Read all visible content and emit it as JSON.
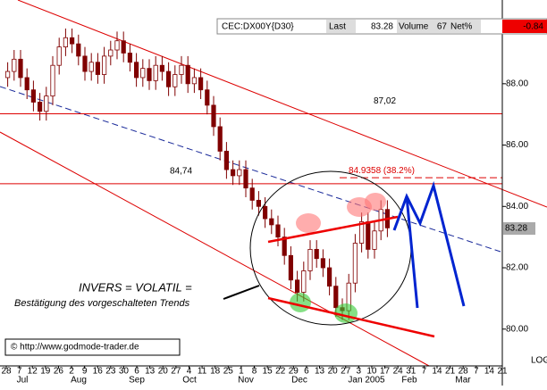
{
  "chart_data": {
    "type": "candlestick",
    "header": {
      "symbol": "CEC:DX00Y{D30}",
      "last_label": "Last",
      "last": "83.28",
      "volume_label": "Volume",
      "volume": "67",
      "net_label": "Net%",
      "net": "-0.84"
    },
    "open": [
      88.2,
      88.4,
      88.8,
      88.2,
      87.8,
      87.4,
      87.1,
      87.6,
      88.6,
      89.2,
      89.5,
      89.3,
      88.9,
      88.4,
      88.7,
      88.3,
      88.9,
      89.1,
      89.4,
      89.0,
      88.7,
      88.2,
      88.5,
      88.1,
      88.6,
      88.4,
      87.9,
      88.3,
      88.6,
      88.0,
      88.2,
      87.8,
      87.3,
      86.6,
      85.8,
      85.2,
      85.0,
      85.2,
      84.6,
      84.2,
      84.0,
      83.6,
      83.4,
      83.0,
      82.4,
      81.6,
      81.2,
      81.9,
      82.6,
      82.3,
      82.0,
      81.4,
      80.7,
      80.6,
      81.5,
      82.8,
      83.5,
      82.6,
      83.2,
      83.9
    ],
    "high": [
      88.7,
      89.1,
      89.1,
      88.5,
      88.1,
      87.7,
      87.9,
      88.9,
      89.5,
      89.8,
      89.8,
      89.6,
      89.2,
      89.0,
      89.0,
      89.2,
      89.4,
      89.7,
      89.7,
      89.3,
      89.0,
      88.8,
      88.8,
      88.9,
      88.9,
      88.7,
      88.6,
      88.9,
      88.9,
      88.5,
      88.5,
      88.1,
      87.6,
      86.9,
      86.1,
      85.5,
      85.5,
      85.5,
      84.9,
      84.5,
      84.3,
      83.9,
      83.7,
      83.3,
      82.7,
      81.9,
      82.2,
      82.9,
      82.9,
      82.6,
      82.3,
      81.7,
      81.0,
      81.8,
      83.1,
      83.8,
      83.8,
      83.5,
      84.2,
      84.2
    ],
    "low": [
      87.9,
      88.1,
      87.9,
      87.5,
      87.1,
      86.8,
      86.8,
      87.3,
      88.3,
      88.9,
      89.0,
      88.6,
      88.1,
      88.1,
      88.0,
      88.0,
      88.6,
      88.8,
      88.7,
      88.4,
      87.9,
      87.9,
      87.8,
      87.8,
      88.1,
      87.6,
      87.6,
      88.0,
      87.7,
      87.7,
      87.5,
      87.0,
      86.3,
      85.5,
      84.9,
      84.7,
      84.7,
      84.3,
      83.9,
      83.7,
      83.3,
      83.1,
      82.7,
      82.1,
      81.3,
      80.9,
      80.9,
      81.6,
      82.0,
      81.7,
      81.1,
      80.4,
      80.3,
      80.3,
      81.2,
      82.5,
      82.3,
      82.3,
      82.9,
      83.0
    ],
    "close": [
      88.4,
      88.8,
      88.2,
      87.8,
      87.4,
      87.1,
      87.6,
      88.6,
      89.2,
      89.5,
      89.3,
      88.9,
      88.4,
      88.7,
      88.3,
      88.9,
      89.1,
      89.4,
      89.0,
      88.7,
      88.2,
      88.5,
      88.1,
      88.6,
      88.4,
      87.9,
      88.3,
      88.6,
      88.0,
      88.2,
      87.8,
      87.3,
      86.6,
      85.8,
      85.2,
      85.0,
      85.2,
      84.6,
      84.2,
      84.0,
      83.6,
      83.4,
      83.0,
      82.4,
      81.6,
      81.2,
      81.9,
      82.6,
      82.3,
      82.0,
      81.4,
      80.7,
      80.6,
      81.5,
      82.8,
      83.5,
      82.6,
      83.2,
      83.9,
      83.3
    ],
    "color": "#800000",
    "ylim": [
      78.8,
      90.73
    ],
    "yticks": [
      {
        "value": 80,
        "label": "80.00"
      },
      {
        "value": 82,
        "label": "82.00"
      },
      {
        "value": 84,
        "label": "84.00"
      },
      {
        "value": 86,
        "label": "86.00"
      },
      {
        "value": 88,
        "label": "88.00"
      }
    ],
    "last_price": {
      "value": 83.28,
      "label": "83.28"
    },
    "levels": [
      {
        "value": 87.02,
        "label": "87,02"
      },
      {
        "value": 84.74,
        "label": "84,74"
      }
    ],
    "fib_level": {
      "value": 84.9358,
      "label": "84.9358 (38.2%)"
    },
    "xticks": [
      "28",
      "7",
      "12",
      "19",
      "26",
      "2",
      "9",
      "16",
      "23",
      "30",
      "6",
      "13",
      "20",
      "27",
      "4",
      "11",
      "18",
      "25",
      "1",
      "8",
      "15",
      "22",
      "29",
      "6",
      "13",
      "20",
      "27",
      "3",
      "10",
      "17",
      "24",
      "31",
      "7",
      "14",
      "21",
      "28",
      "7",
      "14",
      "21"
    ],
    "months": [
      "Jul",
      "Aug",
      "Sep",
      "Oct",
      "Nov",
      "Dec",
      "Jan 2005",
      "Feb",
      "Mar"
    ],
    "annotation_1": "INVERS = VOLATIL =",
    "annotation_2": "Bestätigung des vorgeschalteten Trends",
    "copyright": "© http://www.godmode-trader.de",
    "scale_label": "LOG"
  }
}
